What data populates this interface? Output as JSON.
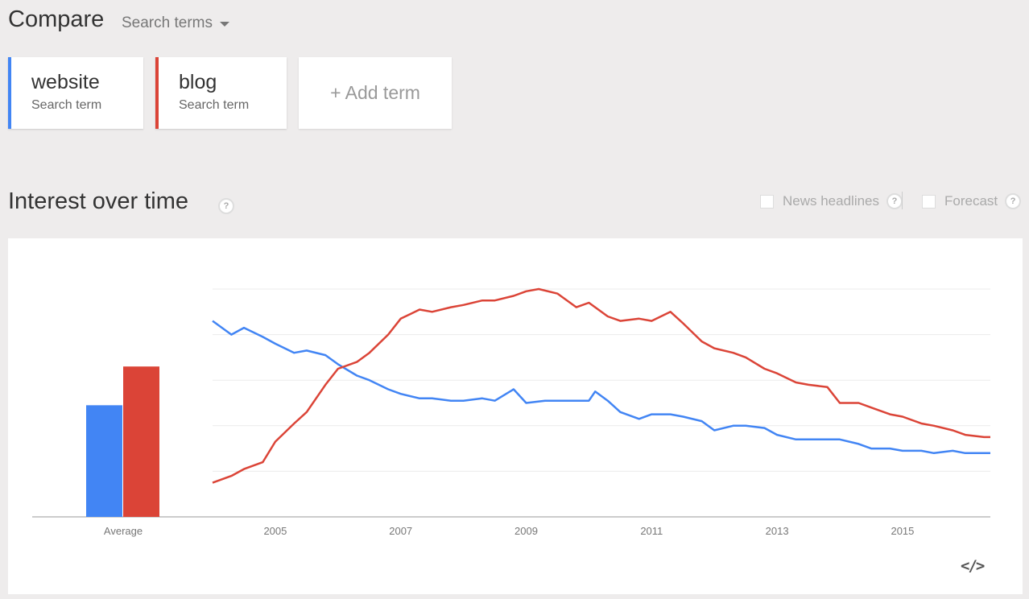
{
  "header": {
    "title": "Compare",
    "dropdown_label": "Search terms"
  },
  "terms": [
    {
      "name": "website",
      "sub": "Search term",
      "color": "#4285f4"
    },
    {
      "name": "blog",
      "sub": "Search term",
      "color": "#db4437"
    }
  ],
  "add_term_label": "+ Add term",
  "section": {
    "title": "Interest over time",
    "help_glyph": "?",
    "options": [
      {
        "label": "News headlines",
        "checked": false
      },
      {
        "label": "Forecast",
        "checked": false
      }
    ]
  },
  "embed_icon": "</>",
  "chart_data": {
    "type": "line",
    "x_ticks": [
      "2005",
      "2007",
      "2009",
      "2011",
      "2013",
      "2015"
    ],
    "x_range": [
      2004.0,
      2016.4
    ],
    "y_range": [
      0,
      100
    ],
    "grid": "horizontal",
    "average": {
      "label": "Average",
      "values": [
        49,
        66
      ]
    },
    "series": [
      {
        "name": "website",
        "color": "#4285f4",
        "points": [
          [
            2004.0,
            86
          ],
          [
            2004.3,
            80
          ],
          [
            2004.5,
            83
          ],
          [
            2004.8,
            79
          ],
          [
            2005.0,
            76
          ],
          [
            2005.3,
            72
          ],
          [
            2005.5,
            73
          ],
          [
            2005.8,
            71
          ],
          [
            2006.0,
            67
          ],
          [
            2006.3,
            62
          ],
          [
            2006.5,
            60
          ],
          [
            2006.8,
            56
          ],
          [
            2007.0,
            54
          ],
          [
            2007.3,
            52
          ],
          [
            2007.5,
            52
          ],
          [
            2007.8,
            51
          ],
          [
            2008.0,
            51
          ],
          [
            2008.3,
            52
          ],
          [
            2008.5,
            51
          ],
          [
            2008.8,
            56
          ],
          [
            2009.0,
            50
          ],
          [
            2009.3,
            51
          ],
          [
            2009.5,
            51
          ],
          [
            2009.8,
            51
          ],
          [
            2010.0,
            51
          ],
          [
            2010.1,
            55
          ],
          [
            2010.3,
            51
          ],
          [
            2010.5,
            46
          ],
          [
            2010.8,
            43
          ],
          [
            2011.0,
            45
          ],
          [
            2011.3,
            45
          ],
          [
            2011.5,
            44
          ],
          [
            2011.8,
            42
          ],
          [
            2012.0,
            38
          ],
          [
            2012.3,
            40
          ],
          [
            2012.5,
            40
          ],
          [
            2012.8,
            39
          ],
          [
            2013.0,
            36
          ],
          [
            2013.3,
            34
          ],
          [
            2013.5,
            34
          ],
          [
            2013.8,
            34
          ],
          [
            2014.0,
            34
          ],
          [
            2014.3,
            32
          ],
          [
            2014.5,
            30
          ],
          [
            2014.8,
            30
          ],
          [
            2015.0,
            29
          ],
          [
            2015.3,
            29
          ],
          [
            2015.5,
            28
          ],
          [
            2015.8,
            29
          ],
          [
            2016.0,
            28
          ],
          [
            2016.3,
            28
          ],
          [
            2016.4,
            28
          ]
        ]
      },
      {
        "name": "blog",
        "color": "#db4437",
        "points": [
          [
            2004.0,
            15
          ],
          [
            2004.3,
            18
          ],
          [
            2004.5,
            21
          ],
          [
            2004.8,
            24
          ],
          [
            2005.0,
            33
          ],
          [
            2005.3,
            41
          ],
          [
            2005.5,
            46
          ],
          [
            2005.8,
            58
          ],
          [
            2006.0,
            65
          ],
          [
            2006.3,
            68
          ],
          [
            2006.5,
            72
          ],
          [
            2006.8,
            80
          ],
          [
            2007.0,
            87
          ],
          [
            2007.3,
            91
          ],
          [
            2007.5,
            90
          ],
          [
            2007.8,
            92
          ],
          [
            2008.0,
            93
          ],
          [
            2008.3,
            95
          ],
          [
            2008.5,
            95
          ],
          [
            2008.8,
            97
          ],
          [
            2009.0,
            99
          ],
          [
            2009.2,
            100
          ],
          [
            2009.5,
            98
          ],
          [
            2009.8,
            92
          ],
          [
            2010.0,
            94
          ],
          [
            2010.3,
            88
          ],
          [
            2010.5,
            86
          ],
          [
            2010.8,
            87
          ],
          [
            2011.0,
            86
          ],
          [
            2011.3,
            90
          ],
          [
            2011.5,
            85
          ],
          [
            2011.8,
            77
          ],
          [
            2012.0,
            74
          ],
          [
            2012.3,
            72
          ],
          [
            2012.5,
            70
          ],
          [
            2012.8,
            65
          ],
          [
            2013.0,
            63
          ],
          [
            2013.3,
            59
          ],
          [
            2013.5,
            58
          ],
          [
            2013.8,
            57
          ],
          [
            2014.0,
            50
          ],
          [
            2014.3,
            50
          ],
          [
            2014.5,
            48
          ],
          [
            2014.8,
            45
          ],
          [
            2015.0,
            44
          ],
          [
            2015.3,
            41
          ],
          [
            2015.5,
            40
          ],
          [
            2015.8,
            38
          ],
          [
            2016.0,
            36
          ],
          [
            2016.3,
            35
          ],
          [
            2016.4,
            35
          ]
        ]
      }
    ]
  }
}
